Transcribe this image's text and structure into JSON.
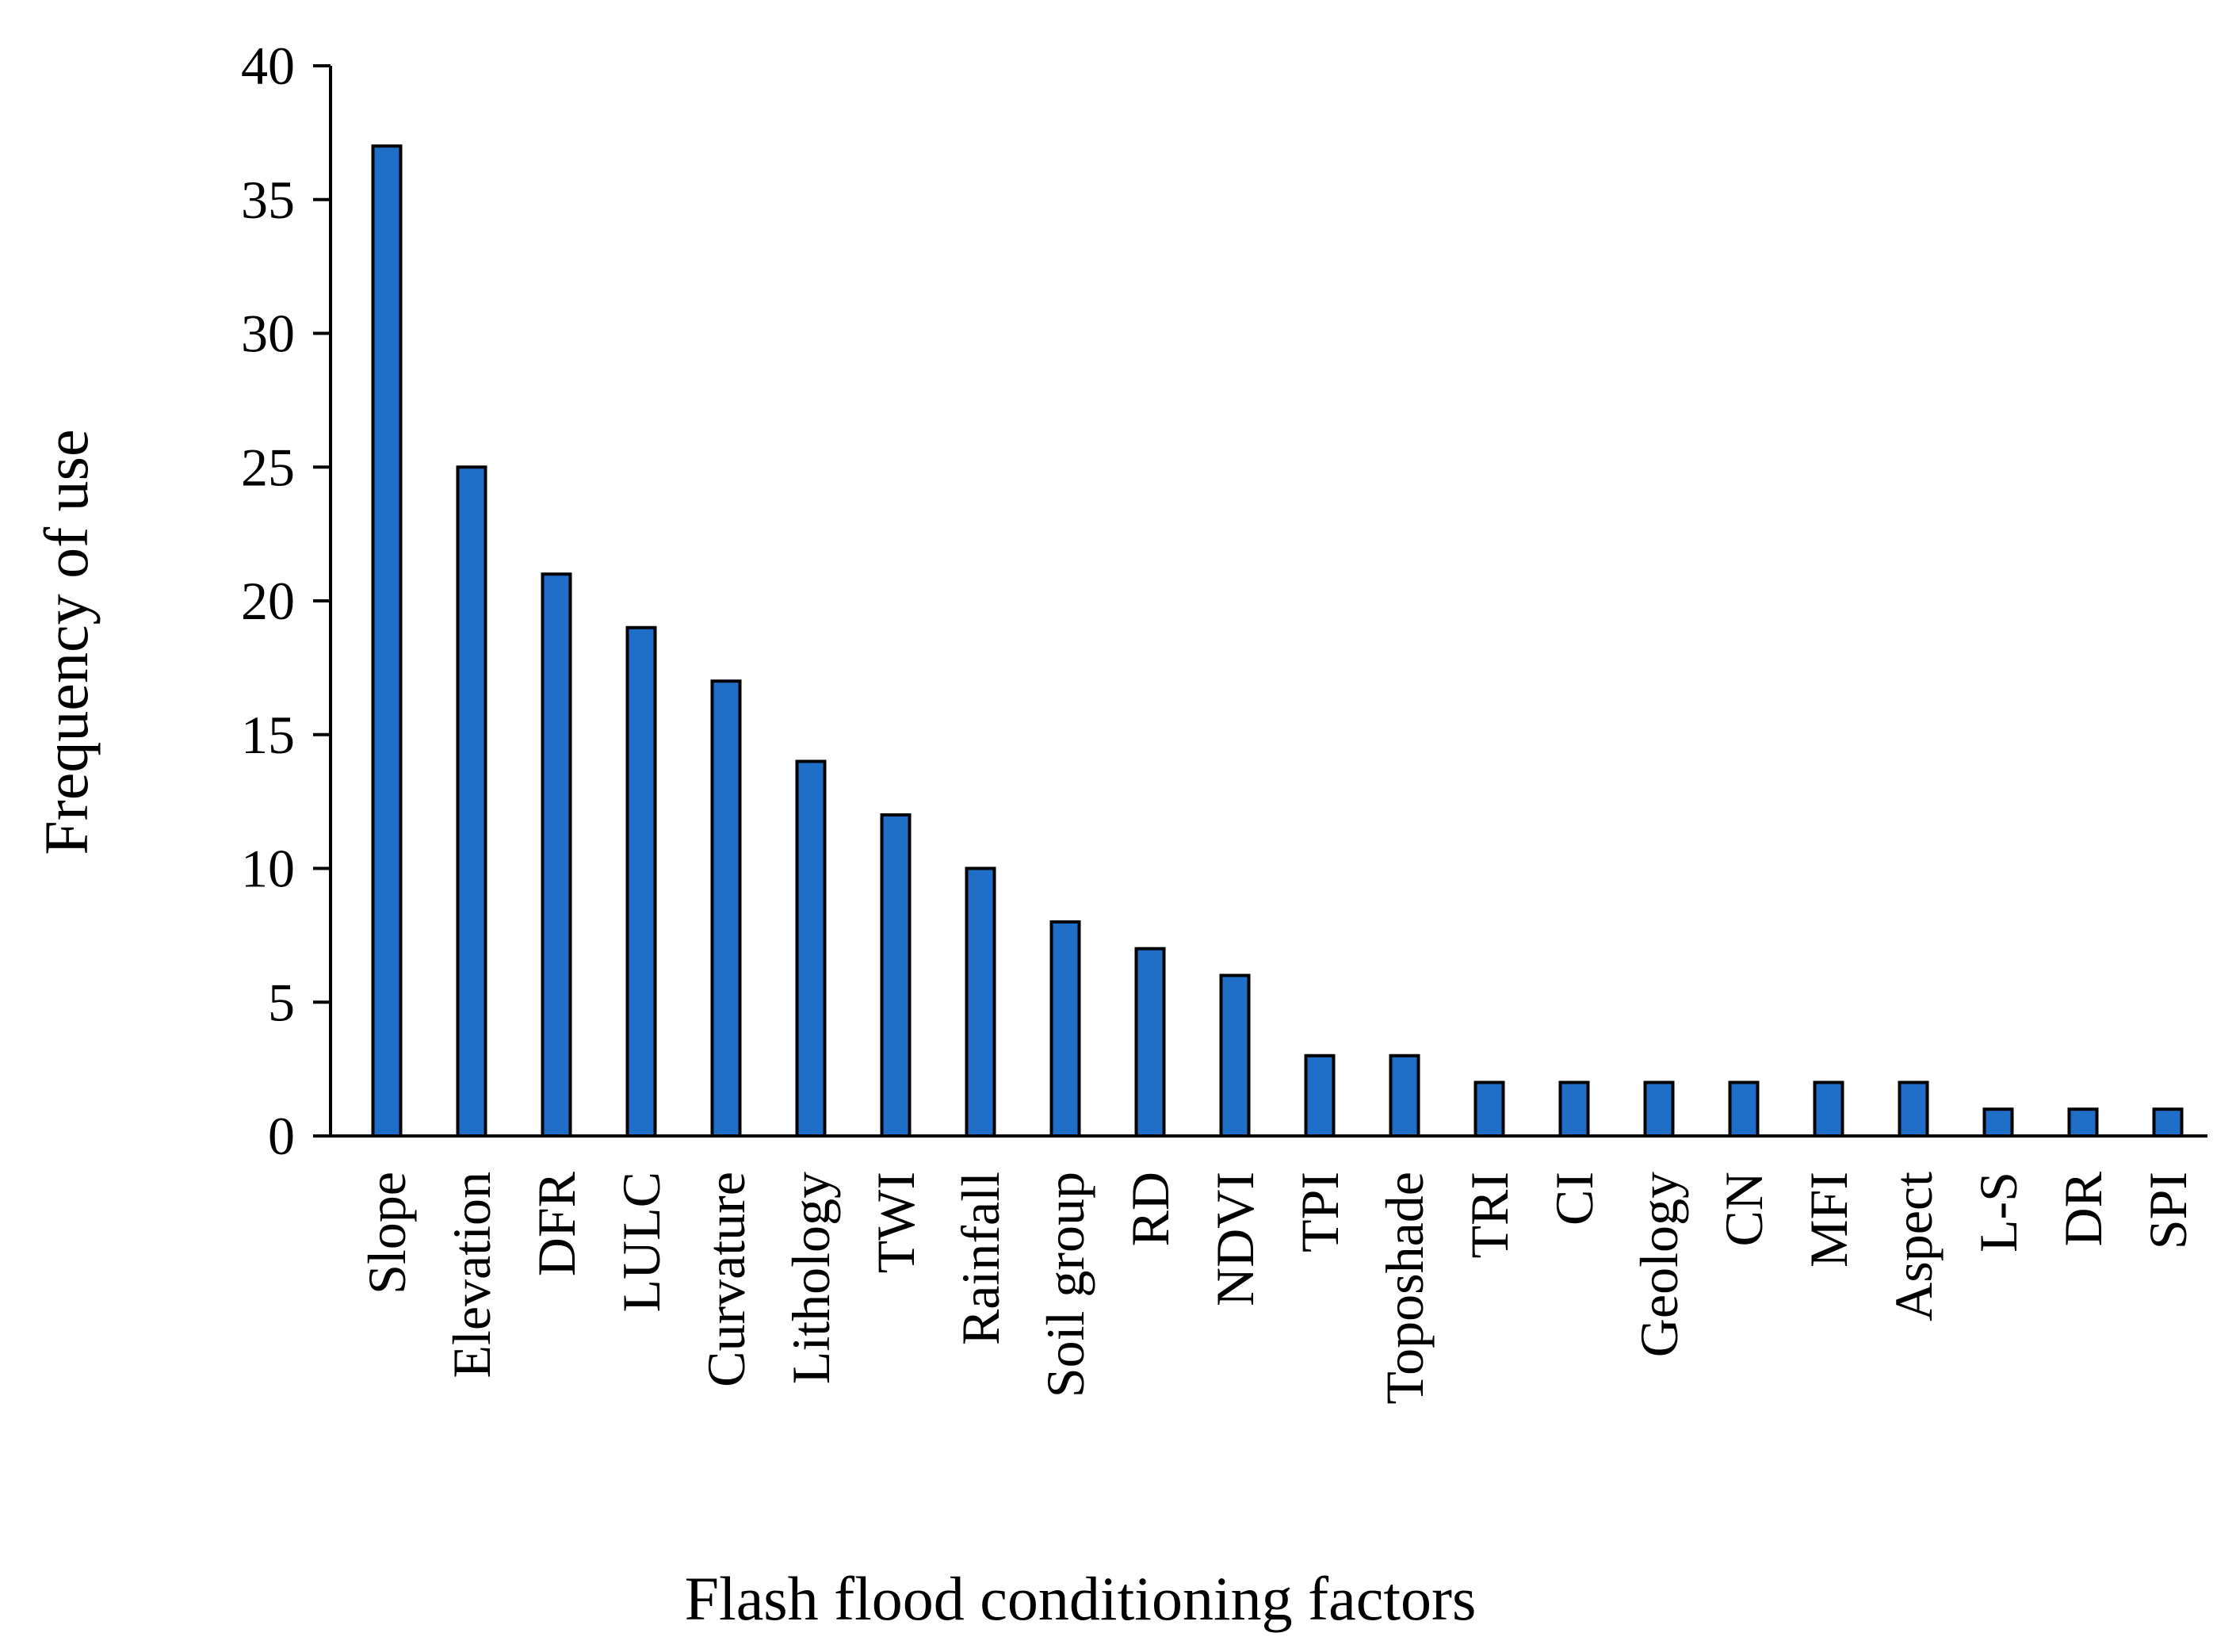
{
  "chart_data": {
    "type": "bar",
    "title": "",
    "xlabel": "Flash flood conditioning factors",
    "ylabel": "Frequency of use",
    "ylim": [
      0,
      40
    ],
    "yticks": [
      0,
      5,
      10,
      15,
      20,
      25,
      30,
      35,
      40
    ],
    "grid": false,
    "legend": "none",
    "bar_color": "#1F6FC9",
    "categories": [
      "Slope",
      "Elevation",
      "DFR",
      "LULC",
      "Curvature",
      "Lithology",
      "TWI",
      "Rainfall",
      "Soil group",
      "RD",
      "NDVI",
      "TPI",
      "Toposhade",
      "TRI",
      "CI",
      "Geology",
      "CN",
      "MFI",
      "Aspect",
      "L-S",
      "DR",
      "SPI"
    ],
    "values": [
      37,
      25,
      21,
      19,
      17,
      14,
      12,
      10,
      8,
      7,
      6,
      3,
      3,
      2,
      2,
      2,
      2,
      2,
      2,
      1,
      1,
      1
    ]
  }
}
